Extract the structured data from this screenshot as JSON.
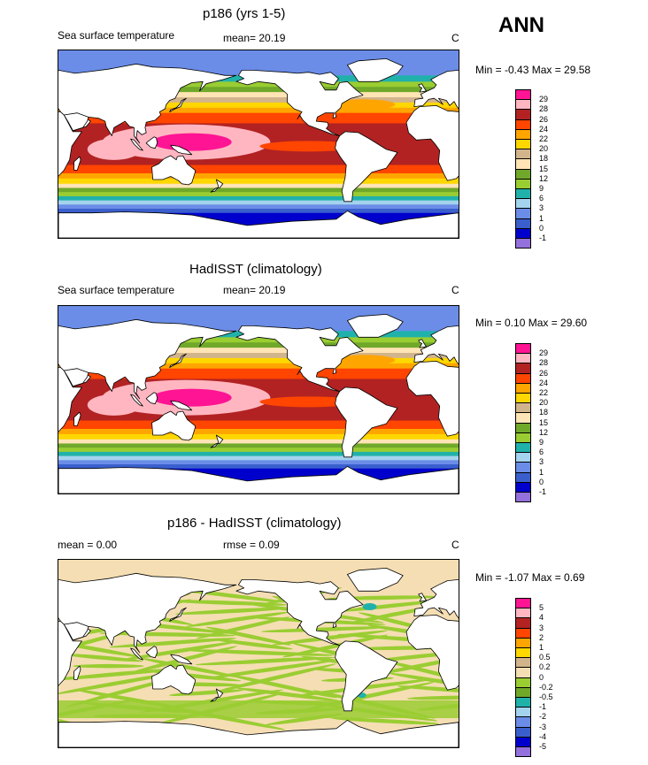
{
  "season": "ANN",
  "colors": {
    "sst": [
      "#9370db",
      "#0000cd",
      "#3a5fcd",
      "#6b8de8",
      "#a4d3ee",
      "#20b2aa",
      "#9acd32",
      "#70a82a",
      "#ffe4b5",
      "#d2b48c",
      "#ffd700",
      "#ffa500",
      "#ff4500",
      "#b22222",
      "#ffb6c1",
      "#ff1493"
    ],
    "diff": [
      "#9370db",
      "#0000cd",
      "#3a5fcd",
      "#6b8de8",
      "#a4d3ee",
      "#20b2aa",
      "#70a82a",
      "#9acd32",
      "#f5deb3",
      "#d2b48c",
      "#ffd700",
      "#ffa500",
      "#ff4500",
      "#b22222",
      "#ffb6c1",
      "#ff1493"
    ],
    "land": "#ffffff",
    "coast": "#000000"
  },
  "chart_data": [
    {
      "type": "heatmap",
      "title": "p186 (yrs 1-5)",
      "left_label": "Sea surface temperature",
      "mean_text": "mean=  20.19",
      "units": "C",
      "minmax_text": "Min =  -0.43 Max =  29.58",
      "min": -0.43,
      "max": 29.58,
      "colorbar_levels": [
        "29",
        "28",
        "26",
        "24",
        "22",
        "20",
        "18",
        "15",
        "12",
        "9",
        "6",
        "3",
        "1",
        "0",
        "-1"
      ],
      "colormap": "sst",
      "field": "model_sst"
    },
    {
      "type": "heatmap",
      "title": "HadISST (climatology)",
      "left_label": "Sea surface temperature",
      "mean_text": "mean=  20.19",
      "units": "C",
      "minmax_text": "Min =  0.10 Max =  29.60",
      "min": 0.1,
      "max": 29.6,
      "colorbar_levels": [
        "29",
        "28",
        "26",
        "24",
        "22",
        "20",
        "18",
        "15",
        "12",
        "9",
        "6",
        "3",
        "1",
        "0",
        "-1"
      ],
      "colormap": "sst",
      "field": "obs_sst"
    },
    {
      "type": "heatmap",
      "title": "p186 - HadISST (climatology)",
      "left_label": "mean =   0.00",
      "mean_text": "rmse =   0.09",
      "units": "C",
      "minmax_text": "Min =  -1.07 Max =   0.69",
      "min": -1.07,
      "max": 0.69,
      "colorbar_levels": [
        "5",
        "4",
        "3",
        "2",
        "1",
        "0.5",
        "0.2",
        "0",
        "-0.2",
        "-0.5",
        "-1",
        "-2",
        "-3",
        "-4",
        "-5"
      ],
      "colormap": "diff",
      "field": "difference"
    }
  ]
}
